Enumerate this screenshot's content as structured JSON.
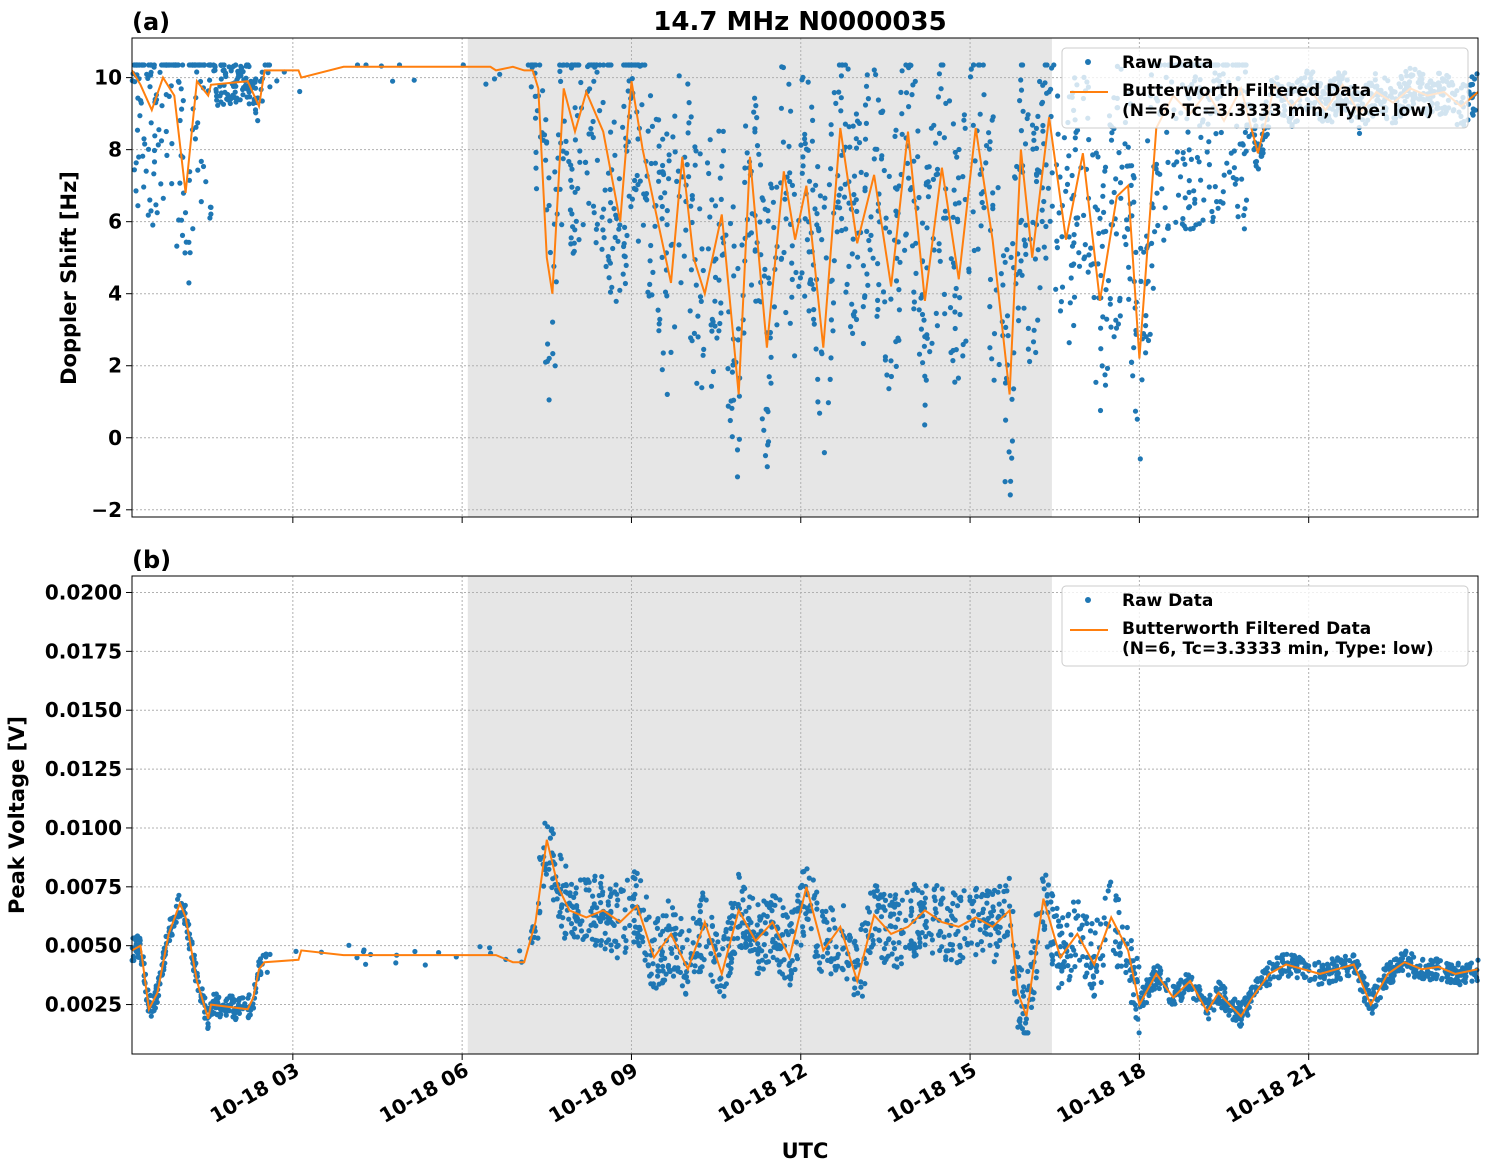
{
  "figure": {
    "title": "14.7 MHz N0000035",
    "xlabel": "UTC",
    "xticks": [
      "10-18 03",
      "10-18 06",
      "10-18 09",
      "10-18 12",
      "10-18 15",
      "10-18 18",
      "10-18 21"
    ]
  },
  "chart_data": [
    {
      "type": "scatter",
      "panel_label": "(a)",
      "ylabel": "Doppler Shift [Hz]",
      "ylim": [
        -2.2,
        11.1
      ],
      "xlim_hours": [
        0.15,
        24.0
      ],
      "yticks": [
        -2,
        0,
        2,
        4,
        6,
        8,
        10
      ],
      "ytick_labels": [
        "−2",
        "0",
        "2",
        "4",
        "6",
        "8",
        "10"
      ],
      "shaded_region_hours": [
        6.1,
        16.45
      ],
      "legend": {
        "location": "top-right",
        "entries": [
          "Raw Data",
          "Butterworth Filtered Data",
          "(N=6, Tc=3.3333 min, Type: low)"
        ]
      },
      "series": [
        {
          "name": "Raw Data",
          "color": "#1f77b4",
          "style": "points"
        },
        {
          "name": "Butterworth Filtered Data (N=6, Tc=3.3333 min, Type: low)",
          "color": "#ff7f0e",
          "style": "line",
          "x": [
            0.15,
            0.3,
            0.5,
            0.7,
            0.9,
            1.1,
            1.3,
            1.5,
            1.55,
            2.2,
            2.4,
            2.5,
            3.1,
            3.15,
            3.9,
            6.0,
            6.5,
            6.6,
            6.9,
            7.1,
            7.25,
            7.35,
            7.5,
            7.6,
            7.8,
            8.0,
            8.2,
            8.5,
            8.8,
            9.0,
            9.2,
            9.4,
            9.7,
            9.9,
            10.1,
            10.3,
            10.6,
            10.9,
            11.1,
            11.4,
            11.7,
            11.9,
            12.1,
            12.4,
            12.7,
            13.0,
            13.3,
            13.6,
            13.9,
            14.2,
            14.5,
            14.8,
            15.1,
            15.4,
            15.7,
            15.9,
            16.1,
            16.4,
            16.7,
            17.0,
            17.3,
            17.6,
            17.8,
            18.0,
            18.3,
            18.6,
            18.9,
            19.2,
            19.5,
            19.8,
            20.1,
            20.4,
            20.7,
            21.0,
            21.3,
            21.6,
            21.9,
            22.2,
            22.5,
            22.8,
            23.1,
            23.4,
            23.7,
            24.0
          ],
          "y": [
            10.2,
            9.8,
            9.1,
            10.0,
            9.5,
            6.8,
            9.9,
            9.5,
            9.8,
            9.9,
            9.2,
            10.2,
            10.2,
            10.0,
            10.3,
            10.3,
            10.3,
            10.2,
            10.3,
            10.2,
            10.2,
            9.7,
            5.0,
            4.0,
            9.7,
            8.5,
            9.6,
            8.5,
            6.0,
            9.9,
            8.0,
            6.5,
            4.3,
            7.8,
            5.0,
            4.0,
            6.2,
            1.2,
            7.8,
            2.5,
            7.4,
            5.5,
            7.0,
            2.5,
            8.6,
            5.4,
            7.3,
            4.2,
            8.5,
            3.8,
            7.5,
            4.4,
            8.6,
            5.5,
            1.2,
            8.0,
            5.0,
            8.9,
            5.5,
            7.9,
            3.8,
            6.7,
            7.0,
            2.2,
            8.6,
            9.5,
            9.0,
            9.6,
            8.8,
            9.7,
            7.9,
            9.8,
            9.2,
            9.7,
            9.1,
            9.8,
            9.0,
            9.6,
            9.3,
            9.7,
            9.5,
            9.6,
            9.2,
            9.6
          ]
        }
      ]
    },
    {
      "type": "scatter",
      "panel_label": "(b)",
      "ylabel": "Peak Voltage [V]",
      "ylim": [
        0.0004,
        0.0207
      ],
      "xlim_hours": [
        0.15,
        24.0
      ],
      "yticks": [
        0.0025,
        0.005,
        0.0075,
        0.01,
        0.0125,
        0.015,
        0.0175,
        0.02
      ],
      "ytick_labels": [
        "0.0025",
        "0.0050",
        "0.0075",
        "0.0100",
        "0.0125",
        "0.0150",
        "0.0175",
        "0.0200"
      ],
      "shaded_region_hours": [
        6.1,
        16.45
      ],
      "legend": {
        "location": "top-right",
        "entries": [
          "Raw Data",
          "Butterworth Filtered Data",
          "(N=6, Tc=3.3333 min, Type: low)"
        ]
      },
      "series": [
        {
          "name": "Raw Data",
          "color": "#1f77b4",
          "style": "points"
        },
        {
          "name": "Butterworth Filtered Data (N=6, Tc=3.3333 min, Type: low)",
          "color": "#ff7f0e",
          "style": "line",
          "x": [
            0.15,
            0.3,
            0.45,
            0.6,
            0.8,
            1.0,
            1.1,
            1.3,
            1.5,
            1.55,
            2.2,
            2.3,
            2.4,
            2.5,
            3.1,
            3.15,
            3.9,
            6.0,
            6.6,
            6.9,
            7.1,
            7.3,
            7.5,
            7.7,
            7.9,
            8.2,
            8.5,
            8.8,
            9.1,
            9.4,
            9.7,
            10.0,
            10.3,
            10.6,
            10.9,
            11.2,
            11.5,
            11.8,
            12.1,
            12.4,
            12.7,
            13.0,
            13.3,
            13.6,
            13.9,
            14.2,
            14.5,
            14.8,
            15.1,
            15.4,
            15.7,
            15.85,
            16.0,
            16.3,
            16.6,
            16.9,
            17.2,
            17.5,
            17.8,
            18.0,
            18.3,
            18.6,
            18.9,
            19.2,
            19.4,
            19.6,
            19.8,
            20.0,
            20.3,
            20.6,
            20.9,
            21.2,
            21.5,
            21.8,
            22.1,
            22.4,
            22.7,
            23.0,
            23.3,
            23.6,
            24.0
          ],
          "y": [
            0.0048,
            0.005,
            0.0023,
            0.003,
            0.0055,
            0.0068,
            0.0062,
            0.0035,
            0.0019,
            0.0025,
            0.0023,
            0.0028,
            0.004,
            0.0043,
            0.0044,
            0.0048,
            0.0046,
            0.0046,
            0.0046,
            0.0043,
            0.0043,
            0.006,
            0.0095,
            0.0075,
            0.0065,
            0.0062,
            0.0065,
            0.006,
            0.0067,
            0.0045,
            0.0055,
            0.004,
            0.006,
            0.0038,
            0.0065,
            0.0052,
            0.006,
            0.0045,
            0.0075,
            0.0048,
            0.0058,
            0.0035,
            0.0063,
            0.0055,
            0.0058,
            0.0065,
            0.006,
            0.0058,
            0.0062,
            0.0058,
            0.0065,
            0.003,
            0.002,
            0.007,
            0.0045,
            0.0055,
            0.0042,
            0.0062,
            0.0048,
            0.0025,
            0.0038,
            0.0028,
            0.0035,
            0.0022,
            0.003,
            0.0025,
            0.002,
            0.0028,
            0.0038,
            0.0042,
            0.004,
            0.0038,
            0.004,
            0.0042,
            0.0025,
            0.0038,
            0.0043,
            0.004,
            0.0041,
            0.0038,
            0.004
          ]
        }
      ]
    }
  ]
}
